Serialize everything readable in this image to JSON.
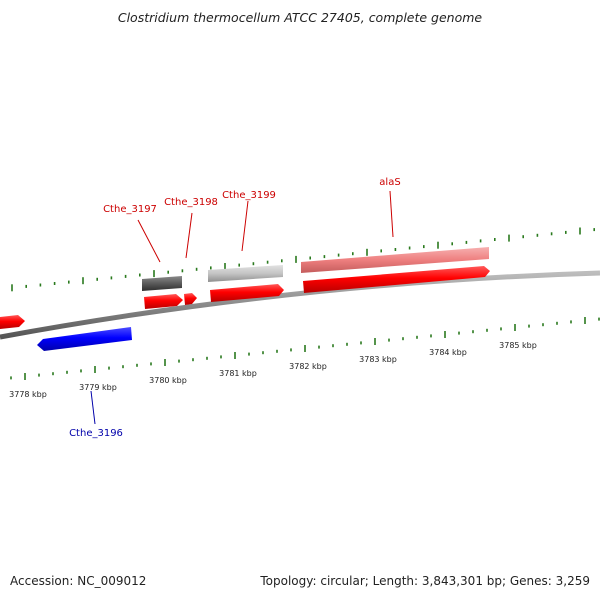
{
  "title": "Clostridium thermocellum ATCC 27405, complete genome",
  "footer": {
    "accession": "Accession: NC_009012",
    "summary": "Topology: circular; Length: 3,843,301 bp; Genes: 3,259"
  },
  "colors": {
    "forward_cds": "#ff0000",
    "reverse_cds": "#0000ff",
    "forward_label": "#cc0000",
    "reverse_label": "#0000aa",
    "tick": "#2a7a1e",
    "backbone": "#888888"
  },
  "ticks": [
    {
      "label": "3778 kbp"
    },
    {
      "label": "3779 kbp"
    },
    {
      "label": "3780 kbp"
    },
    {
      "label": "3781 kbp"
    },
    {
      "label": "3782 kbp"
    },
    {
      "label": "3783 kbp"
    },
    {
      "label": "3784 kbp"
    },
    {
      "label": "3785 kbp"
    }
  ],
  "genes": [
    {
      "name": "Cthe_3196",
      "strand": "reverse"
    },
    {
      "name": "Cthe_3197",
      "strand": "forward"
    },
    {
      "name": "Cthe_3198",
      "strand": "forward"
    },
    {
      "name": "Cthe_3199",
      "strand": "forward"
    },
    {
      "name": "alaS",
      "strand": "forward"
    }
  ]
}
